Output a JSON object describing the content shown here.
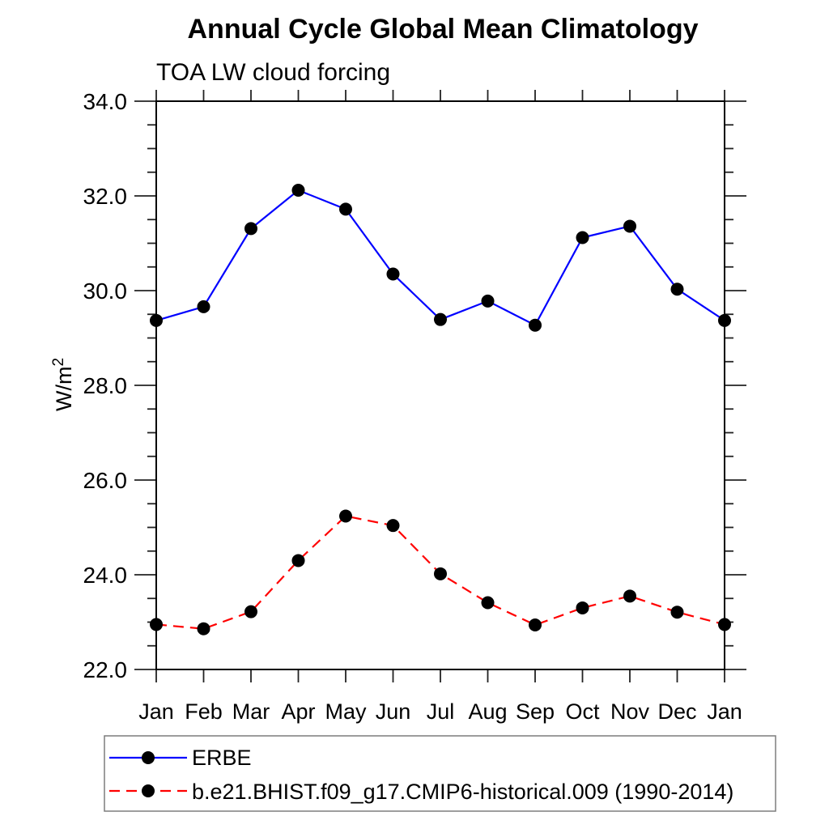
{
  "chart_data": {
    "type": "line",
    "title": "Annual Cycle Global Mean Climatology",
    "subtitle": "TOA LW cloud forcing",
    "ylabel": "W/m²",
    "ylabel_base": "W/m",
    "ylabel_sup": "2",
    "categories": [
      "Jan",
      "Feb",
      "Mar",
      "Apr",
      "May",
      "Jun",
      "Jul",
      "Aug",
      "Sep",
      "Oct",
      "Nov",
      "Dec",
      "Jan"
    ],
    "ylim": [
      22.0,
      34.0
    ],
    "y_major_ticks": [
      22.0,
      24.0,
      26.0,
      28.0,
      30.0,
      32.0,
      34.0
    ],
    "y_tick_labels": [
      "22.0",
      "24.0",
      "26.0",
      "28.0",
      "30.0",
      "32.0",
      "34.0"
    ],
    "y_minor_step": 0.5,
    "grid": "off",
    "legend_position": "bottom-left-box",
    "series": [
      {
        "name": "ERBE",
        "line_color": "#0000ff",
        "line_style": "solid",
        "marker": "filled-circle",
        "marker_color": "#000000",
        "values": [
          29.37,
          29.66,
          31.31,
          32.12,
          31.72,
          30.35,
          29.39,
          29.78,
          29.27,
          31.12,
          31.36,
          30.03,
          29.37
        ]
      },
      {
        "name": "b.e21.BHIST.f09_g17.CMIP6-historical.009 (1990-2014)",
        "line_color": "#ff0000",
        "line_style": "dashed",
        "marker": "filled-circle",
        "marker_color": "#000000",
        "values": [
          22.95,
          22.86,
          23.22,
          24.3,
          25.24,
          25.04,
          24.02,
          23.41,
          22.94,
          23.3,
          23.55,
          23.21,
          22.95
        ]
      }
    ]
  }
}
